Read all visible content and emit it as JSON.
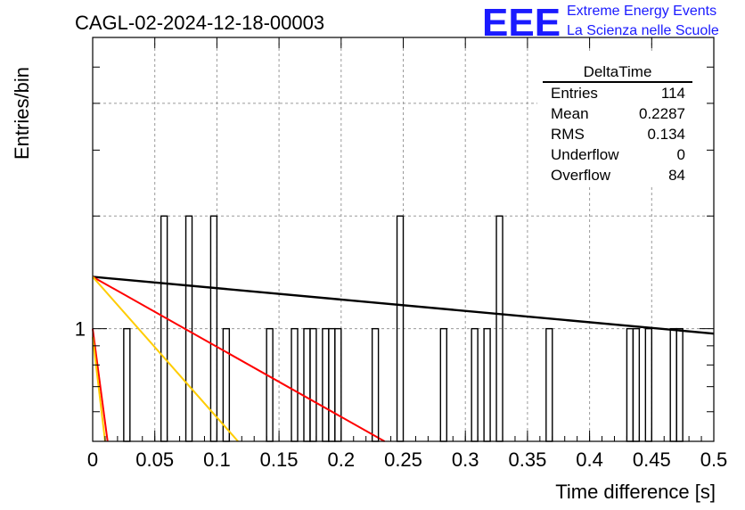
{
  "chart_data": {
    "type": "histogram",
    "title": "CAGL-02-2024-12-18-00003",
    "xlabel": "Time difference [s]",
    "ylabel": "Entries/bin",
    "xlim": [
      0,
      0.5
    ],
    "y_scale": "log",
    "ylim": [
      0.5,
      6
    ],
    "x_ticks": [
      "0",
      "0.05",
      "0.1",
      "0.15",
      "0.2",
      "0.25",
      "0.3",
      "0.35",
      "0.4",
      "0.45",
      "0.5"
    ],
    "y_tick_labels": [
      "1"
    ],
    "grid": true,
    "bin_width": 0.005,
    "bins": [
      {
        "x": 0.025,
        "value": 1
      },
      {
        "x": 0.055,
        "value": 2
      },
      {
        "x": 0.075,
        "value": 2
      },
      {
        "x": 0.095,
        "value": 2
      },
      {
        "x": 0.105,
        "value": 1
      },
      {
        "x": 0.14,
        "value": 1
      },
      {
        "x": 0.16,
        "value": 1
      },
      {
        "x": 0.17,
        "value": 1
      },
      {
        "x": 0.175,
        "value": 1
      },
      {
        "x": 0.185,
        "value": 1
      },
      {
        "x": 0.19,
        "value": 1
      },
      {
        "x": 0.195,
        "value": 1
      },
      {
        "x": 0.225,
        "value": 1
      },
      {
        "x": 0.245,
        "value": 2
      },
      {
        "x": 0.28,
        "value": 1
      },
      {
        "x": 0.305,
        "value": 1
      },
      {
        "x": 0.315,
        "value": 1
      },
      {
        "x": 0.325,
        "value": 2
      },
      {
        "x": 0.365,
        "value": 1
      },
      {
        "x": 0.43,
        "value": 1
      },
      {
        "x": 0.435,
        "value": 1
      },
      {
        "x": 0.445,
        "value": 1
      },
      {
        "x": 0.465,
        "value": 1
      },
      {
        "x": 0.47,
        "value": 1
      }
    ],
    "fit_lines": [
      {
        "color": "#000000",
        "x": [
          0,
          0.5
        ],
        "y": [
          1.376,
          0.97
        ]
      },
      {
        "color": "#ff0000",
        "x": [
          0,
          0.235
        ],
        "y": [
          1.376,
          0.5
        ]
      },
      {
        "color": "#ffcc00",
        "x": [
          0,
          0.117
        ],
        "y": [
          1.376,
          0.5
        ]
      },
      {
        "color": "#ff0000",
        "x": [
          0,
          0.012
        ],
        "y": [
          1.0,
          0.5
        ]
      },
      {
        "color": "#ffcc00",
        "x": [
          0,
          0.01
        ],
        "y": [
          0.95,
          0.5
        ]
      }
    ]
  },
  "stats_box": {
    "title": "DeltaTime",
    "rows": [
      {
        "label": "Entries",
        "value": "114"
      },
      {
        "label": "Mean",
        "value": "0.2287"
      },
      {
        "label": "RMS",
        "value": "0.134"
      },
      {
        "label": "Underflow",
        "value": "0"
      },
      {
        "label": "Overflow",
        "value": "84"
      }
    ]
  },
  "logo": {
    "mark": "EEE",
    "line1": "Extreme Energy Events",
    "line2": "La Scienza nelle Scuole",
    "color": "#1a1aff"
  }
}
